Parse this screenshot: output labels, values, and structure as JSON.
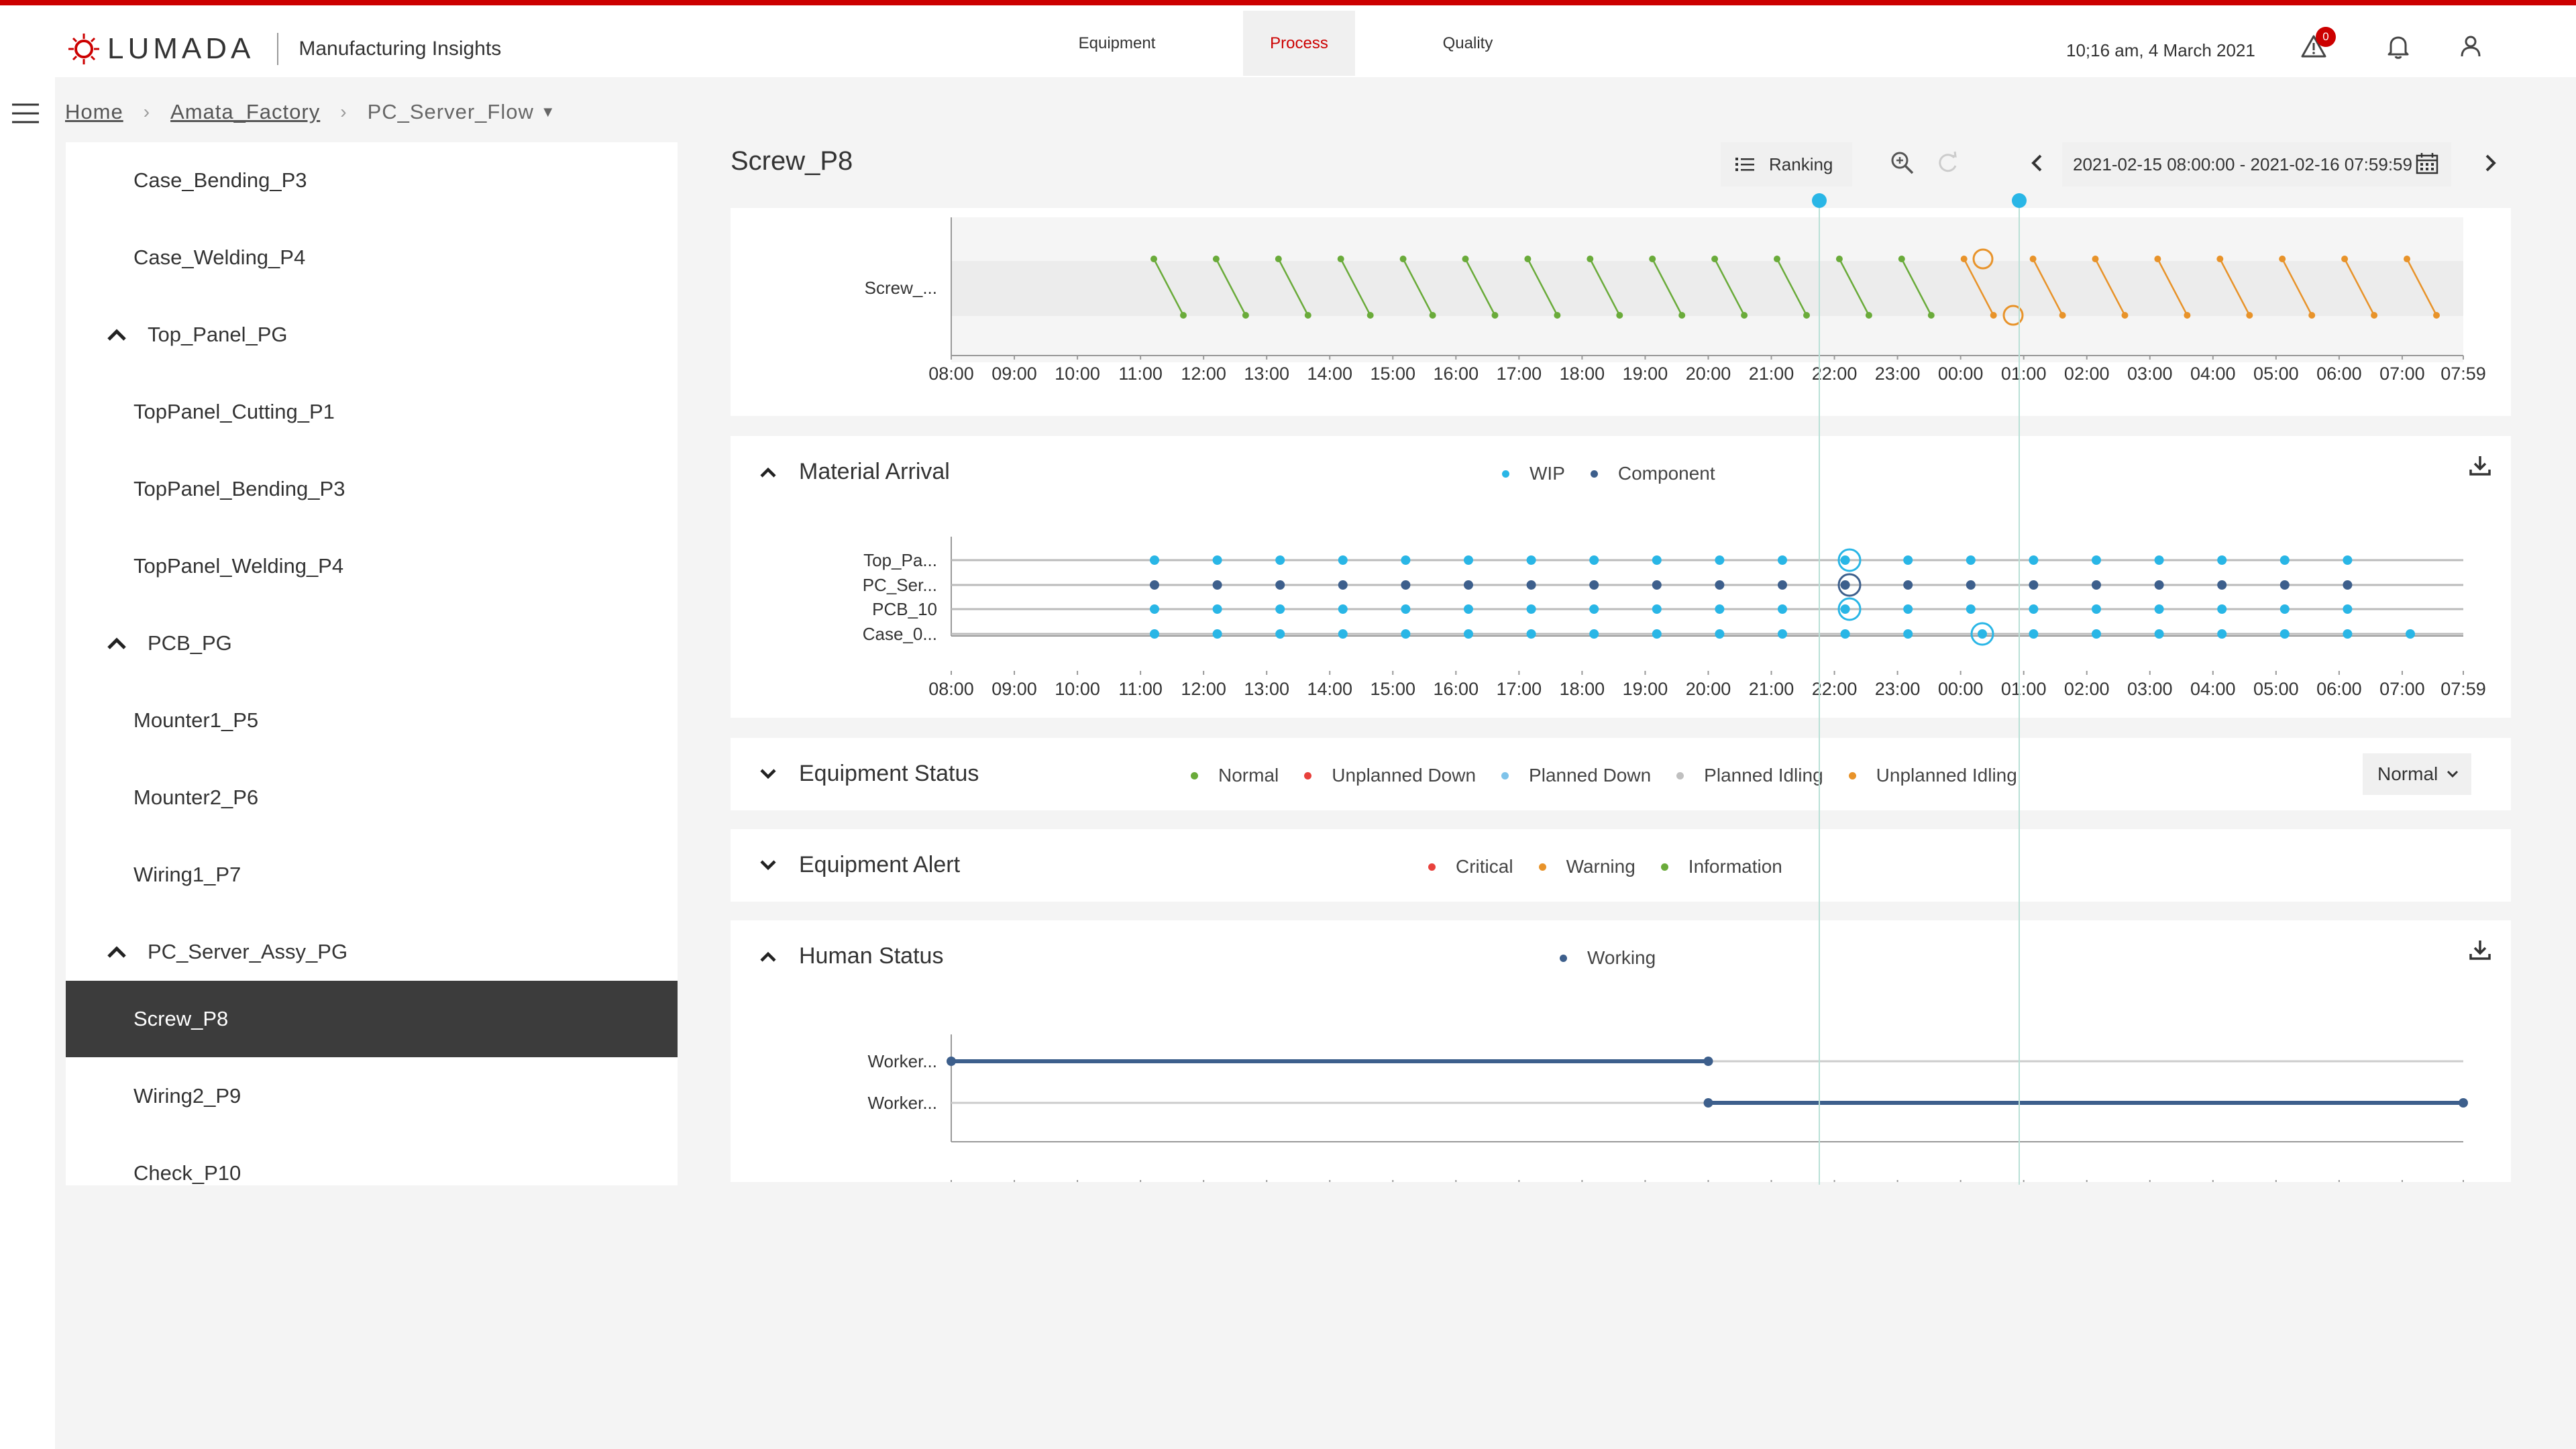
{
  "header": {
    "brand": "LUMADA",
    "app_title": "Manufacturing Insights",
    "tabs": [
      {
        "label": "Equipment",
        "active": false
      },
      {
        "label": "Process",
        "active": true
      },
      {
        "label": "Quality",
        "active": false
      }
    ],
    "datetime": "10;16 am, 4 March 2021",
    "alert_count": "0",
    "icons": [
      "alert-triangle-icon",
      "bell-icon",
      "user-icon"
    ],
    "accent_color": "#cc0000"
  },
  "breadcrumb": {
    "home": "Home",
    "factory": "Amata_Factory",
    "flow": "PC_Server_Flow"
  },
  "sidebar": {
    "items": [
      {
        "label": "Case_Bending_P3",
        "type": "leaf"
      },
      {
        "label": "Case_Welding_P4",
        "type": "leaf"
      },
      {
        "label": "Top_Panel_PG",
        "type": "group"
      },
      {
        "label": "TopPanel_Cutting_P1",
        "type": "leaf"
      },
      {
        "label": "TopPanel_Bending_P3",
        "type": "leaf"
      },
      {
        "label": "TopPanel_Welding_P4",
        "type": "leaf"
      },
      {
        "label": "PCB_PG",
        "type": "group"
      },
      {
        "label": "Mounter1_P5",
        "type": "leaf"
      },
      {
        "label": "Mounter2_P6",
        "type": "leaf"
      },
      {
        "label": "Wiring1_P7",
        "type": "leaf"
      },
      {
        "label": "PC_Server_Assy_PG",
        "type": "group"
      },
      {
        "label": "Screw_P8",
        "type": "leaf",
        "selected": true
      },
      {
        "label": "Wiring2_P9",
        "type": "leaf"
      },
      {
        "label": "Check_P10",
        "type": "leaf"
      }
    ]
  },
  "main": {
    "title": "Screw_P8",
    "ranking_label": "Ranking",
    "date_range": "2021-02-15 08:00:00 - 2021-02-16 07:59:59"
  },
  "time_axis_ticks": [
    "08:00",
    "09:00",
    "10:00",
    "11:00",
    "12:00",
    "13:00",
    "14:00",
    "15:00",
    "16:00",
    "17:00",
    "18:00",
    "19:00",
    "20:00",
    "21:00",
    "22:00",
    "23:00",
    "00:00",
    "01:00",
    "02:00",
    "03:00",
    "04:00",
    "05:00",
    "06:00",
    "07:00",
    "07:59"
  ],
  "process_chart": {
    "row_label": "Screw_...",
    "colors": {
      "before": "#6aab3a",
      "after": "#e8932a",
      "marker": "#29b6e6"
    }
  },
  "material_arrival": {
    "title": "Material Arrival",
    "legend": [
      {
        "label": "WIP",
        "color": "#29b6e6"
      },
      {
        "label": "Component",
        "color": "#3d5f8c"
      }
    ],
    "rows": [
      {
        "label": "Top_Pa...",
        "color": "#29b6e6"
      },
      {
        "label": "PC_Ser...",
        "color": "#3d5f8c"
      },
      {
        "label": "PCB_10",
        "color": "#29b6e6"
      },
      {
        "label": "Case_0...",
        "color": "#29b6e6"
      }
    ]
  },
  "equipment_status": {
    "title": "Equipment Status",
    "legend": [
      {
        "label": "Normal",
        "color": "#6aab3a"
      },
      {
        "label": "Unplanned Down",
        "color": "#e8413c"
      },
      {
        "label": "Planned Down",
        "color": "#7ec3ea"
      },
      {
        "label": "Planned Idling",
        "color": "#c0c0c0"
      },
      {
        "label": "Unplanned Idling",
        "color": "#e8932a"
      }
    ],
    "select_value": "Normal"
  },
  "equipment_alert": {
    "title": "Equipment Alert",
    "legend": [
      {
        "label": "Critical",
        "color": "#e8413c"
      },
      {
        "label": "Warning",
        "color": "#e8932a"
      },
      {
        "label": "Information",
        "color": "#6aab3a"
      }
    ]
  },
  "human_status": {
    "title": "Human Status",
    "legend": [
      {
        "label": "Working",
        "color": "#3d5f8c"
      }
    ],
    "rows": [
      {
        "label": "Worker...",
        "start": "08:00",
        "end": "20:00"
      },
      {
        "label": "Worker...",
        "start": "20:00",
        "end": "07:59"
      }
    ]
  }
}
